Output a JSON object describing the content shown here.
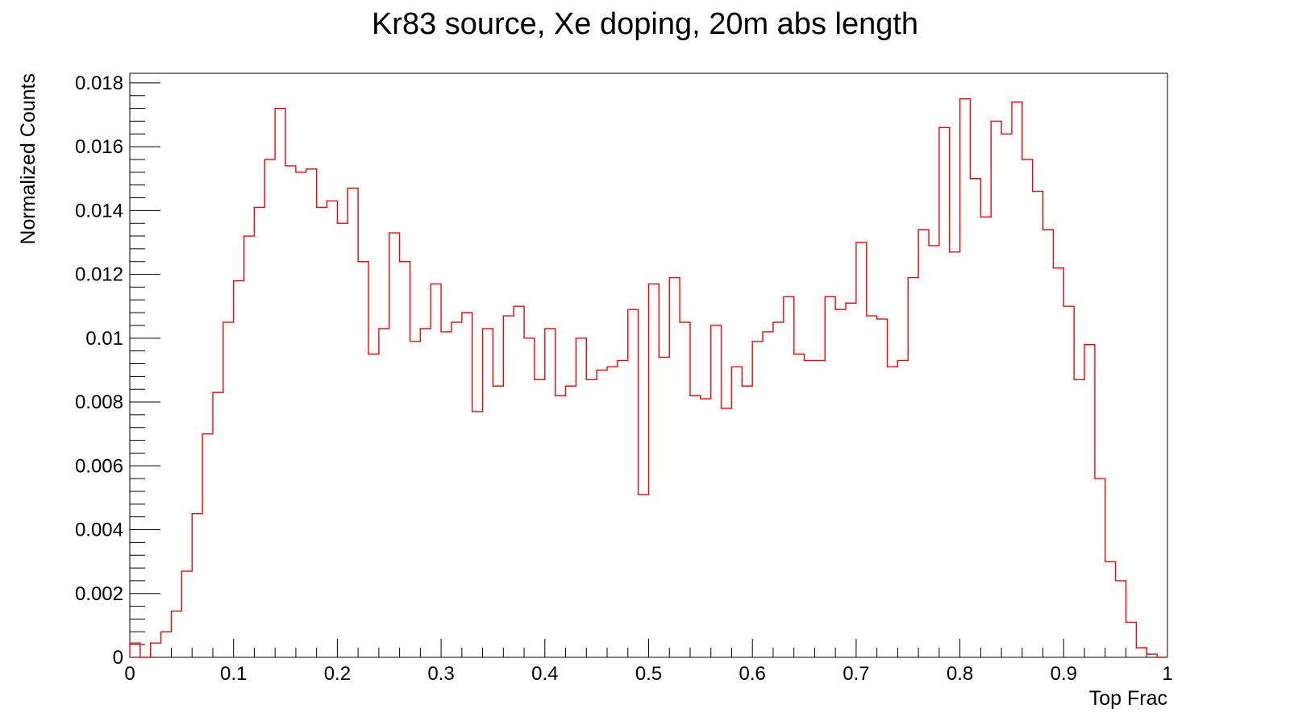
{
  "chart_data": {
    "type": "histogram",
    "title": "Kr83 source, Xe doping, 20m abs length",
    "xlabel": "Top Frac",
    "ylabel": "Normalized Counts",
    "xlim": [
      0,
      1
    ],
    "ylim": [
      0,
      0.0183
    ],
    "line_color": "#ff0000",
    "grid": false,
    "legend": "none",
    "x_ticks": [
      {
        "value": 0,
        "label": "0"
      },
      {
        "value": 0.1,
        "label": "0.1"
      },
      {
        "value": 0.2,
        "label": "0.2"
      },
      {
        "value": 0.3,
        "label": "0.3"
      },
      {
        "value": 0.4,
        "label": "0.4"
      },
      {
        "value": 0.5,
        "label": "0.5"
      },
      {
        "value": 0.6,
        "label": "0.6"
      },
      {
        "value": 0.7,
        "label": "0.7"
      },
      {
        "value": 0.8,
        "label": "0.8"
      },
      {
        "value": 0.9,
        "label": "0.9"
      },
      {
        "value": 1,
        "label": "1"
      }
    ],
    "y_ticks": [
      {
        "value": 0,
        "label": "0"
      },
      {
        "value": 0.002,
        "label": "0.002"
      },
      {
        "value": 0.004,
        "label": "0.004"
      },
      {
        "value": 0.006,
        "label": "0.006"
      },
      {
        "value": 0.008,
        "label": "0.008"
      },
      {
        "value": 0.01,
        "label": "0.01"
      },
      {
        "value": 0.012,
        "label": "0.012"
      },
      {
        "value": 0.014,
        "label": "0.014"
      },
      {
        "value": 0.016,
        "label": "0.016"
      },
      {
        "value": 0.018,
        "label": "0.018"
      }
    ],
    "bin_edges": [
      0,
      1
    ],
    "bin_count": 100,
    "values": [
      0.00045,
      0.0,
      0.00045,
      0.0008,
      0.00145,
      0.0027,
      0.0045,
      0.007,
      0.0083,
      0.0105,
      0.0118,
      0.0132,
      0.0141,
      0.0156,
      0.0172,
      0.0154,
      0.0152,
      0.0153,
      0.0141,
      0.0143,
      0.0136,
      0.0147,
      0.0124,
      0.0095,
      0.0103,
      0.0133,
      0.0124,
      0.0099,
      0.0103,
      0.0117,
      0.0102,
      0.0105,
      0.0108,
      0.0077,
      0.0103,
      0.0085,
      0.0107,
      0.011,
      0.01,
      0.0087,
      0.0103,
      0.0082,
      0.0085,
      0.01,
      0.0087,
      0.009,
      0.0091,
      0.0093,
      0.0109,
      0.0051,
      0.0117,
      0.0094,
      0.0119,
      0.0105,
      0.0082,
      0.0081,
      0.0104,
      0.0078,
      0.0091,
      0.0085,
      0.0099,
      0.0102,
      0.0105,
      0.0113,
      0.0095,
      0.0093,
      0.0093,
      0.0113,
      0.0109,
      0.0111,
      0.013,
      0.0107,
      0.0106,
      0.0091,
      0.0093,
      0.0119,
      0.0134,
      0.0129,
      0.0166,
      0.0127,
      0.0175,
      0.015,
      0.0138,
      0.0168,
      0.0164,
      0.0174,
      0.0156,
      0.0146,
      0.0134,
      0.0122,
      0.011,
      0.0087,
      0.0098,
      0.0056,
      0.003,
      0.0024,
      0.0011,
      0.0003,
      0.0001,
      0.0
    ]
  }
}
